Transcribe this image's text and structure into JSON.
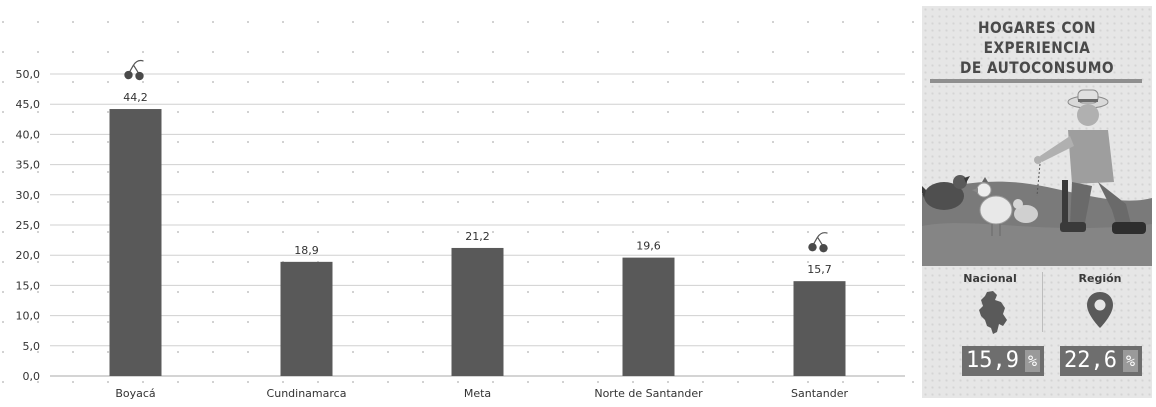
{
  "chart_data": {
    "type": "bar",
    "categories": [
      "Boyacá",
      "Cundinamarca",
      "Meta",
      "Norte de Santander",
      "Santander"
    ],
    "values": [
      44.2,
      18.9,
      21.2,
      19.6,
      15.7
    ],
    "value_labels": [
      "44,2",
      "18,9",
      "21,2",
      "19,6",
      "15,7"
    ],
    "title": "",
    "xlabel": "",
    "ylabel": "",
    "ylim": [
      0,
      50
    ],
    "ytick_labels": [
      "0,0",
      "5,0",
      "10,0",
      "15,0",
      "20,0",
      "25,0",
      "30,0",
      "35,0",
      "40,0",
      "45,0",
      "50,0"
    ],
    "grid": true,
    "bar_color": "#595959",
    "highlight_icon": "cherry-icon",
    "highlighted_categories": [
      "Boyacá",
      "Santander"
    ]
  },
  "panel": {
    "title_line1": "HOGARES CON EXPERIENCIA",
    "title_line2": "DE AUTOCONSUMO",
    "illustration": "farmer-feeding-chickens",
    "nacional": {
      "label": "Nacional",
      "icon": "colombia-map-icon",
      "value": "15,9",
      "unit": "%"
    },
    "region": {
      "label": "Región",
      "icon": "location-pin-icon",
      "value": "22,6",
      "unit": "%"
    }
  }
}
